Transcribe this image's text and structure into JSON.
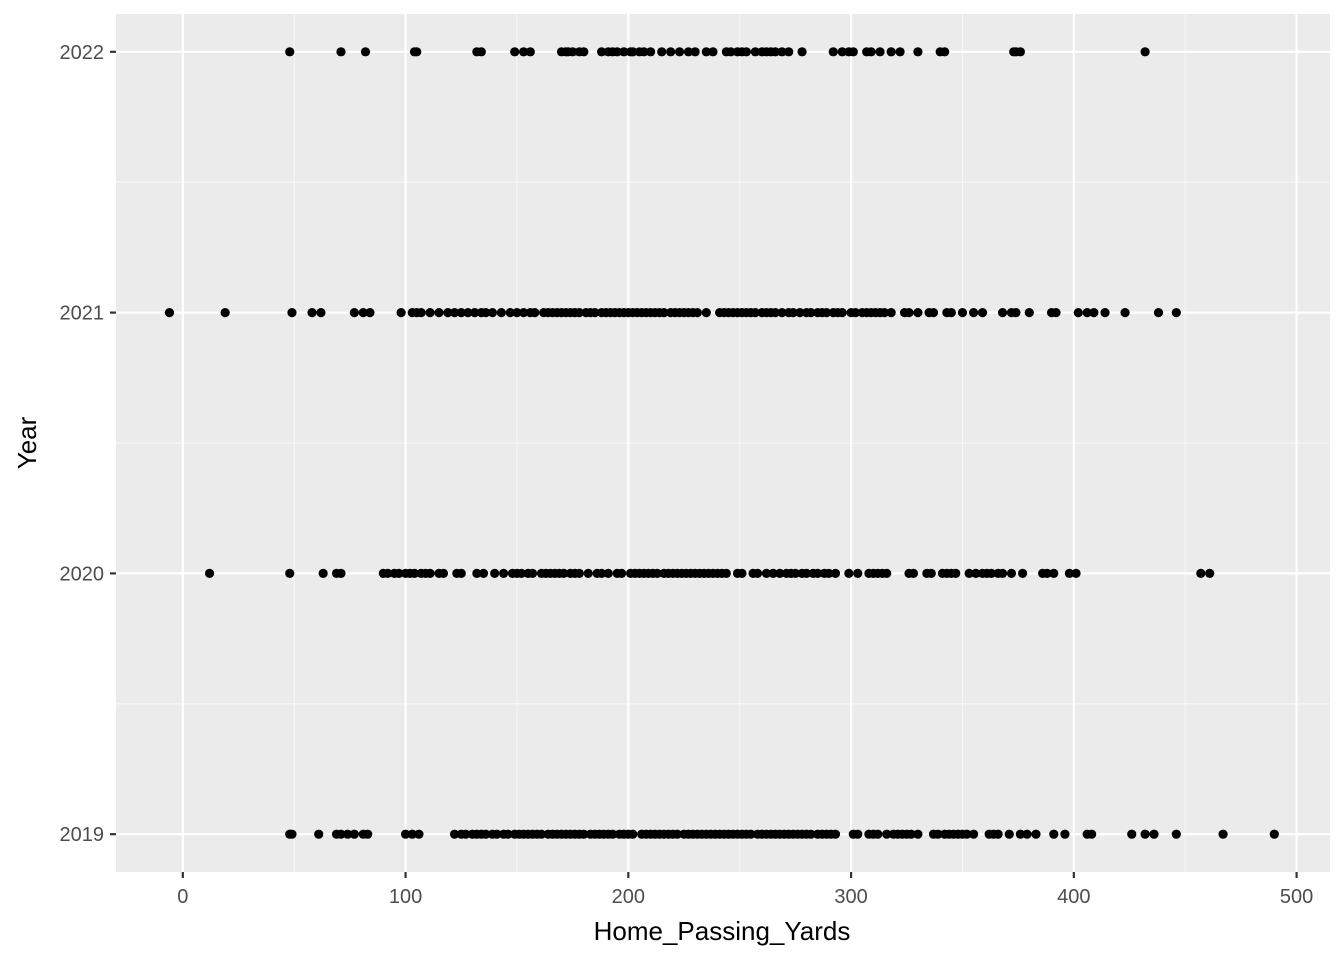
{
  "chart_data": {
    "type": "scatter",
    "xlabel": "Home_Passing_Yards",
    "ylabel": "Year",
    "xlim": [
      -30,
      515
    ],
    "xticks": [
      0,
      100,
      200,
      300,
      400,
      500
    ],
    "ylim": [
      2018.855,
      2022.145
    ],
    "yticks": [
      2019,
      2020,
      2021,
      2022
    ],
    "grid": true,
    "legend": "none",
    "colors": {
      "panel": "#ebebeb",
      "grid_major": "#ffffff",
      "grid_minor": "#f7f7f7",
      "point": "#000000",
      "tick_text": "#4d4d4d",
      "title_text": "#000000"
    },
    "series": [
      {
        "year": 2022,
        "x": [
          48,
          71,
          82,
          104,
          105,
          132,
          134,
          149,
          153,
          156,
          170,
          172,
          173,
          175,
          178,
          180,
          188,
          191,
          193,
          195,
          198,
          201,
          202,
          205,
          207,
          210,
          215,
          219,
          223,
          227,
          230,
          235,
          238,
          244,
          246,
          249,
          251,
          253,
          257,
          260,
          262,
          264,
          266,
          269,
          272,
          278,
          292,
          296,
          299,
          301,
          307,
          309,
          313,
          318,
          322,
          330,
          340,
          342,
          373,
          374,
          376,
          432
        ]
      },
      {
        "year": 2021,
        "x": [
          -6,
          19,
          49,
          58,
          62,
          77,
          81,
          84,
          98,
          103,
          105,
          107,
          111,
          115,
          119,
          122,
          125,
          128,
          131,
          134,
          136,
          139,
          143,
          147,
          150,
          153,
          156,
          158,
          162,
          164,
          166,
          168,
          170,
          172,
          174,
          176,
          178,
          181,
          183,
          185,
          188,
          190,
          192,
          194,
          196,
          198,
          200,
          202,
          204,
          206,
          208,
          210,
          212,
          214,
          216,
          219,
          221,
          223,
          225,
          227,
          229,
          231,
          235,
          241,
          243,
          245,
          247,
          249,
          251,
          253,
          255,
          257,
          260,
          262,
          264,
          266,
          269,
          272,
          274,
          277,
          280,
          282,
          285,
          287,
          289,
          292,
          294,
          296,
          300,
          302,
          305,
          307,
          309,
          311,
          313,
          315,
          318,
          324,
          326,
          330,
          335,
          337,
          343,
          345,
          350,
          355,
          359,
          368,
          372,
          374,
          380,
          390,
          392,
          402,
          406,
          409,
          414,
          423,
          438,
          446
        ]
      },
      {
        "year": 2020,
        "x": [
          12,
          48,
          63,
          69,
          71,
          90,
          92,
          95,
          97,
          100,
          102,
          104,
          107,
          109,
          111,
          115,
          117,
          123,
          125,
          132,
          135,
          140,
          144,
          148,
          150,
          152,
          155,
          157,
          161,
          163,
          165,
          167,
          169,
          171,
          174,
          176,
          178,
          182,
          186,
          188,
          191,
          195,
          197,
          201,
          203,
          205,
          207,
          209,
          211,
          213,
          216,
          218,
          220,
          222,
          224,
          226,
          228,
          230,
          232,
          234,
          236,
          238,
          240,
          242,
          244,
          249,
          251,
          256,
          258,
          262,
          265,
          268,
          271,
          273,
          275,
          278,
          280,
          283,
          285,
          288,
          290,
          293,
          299,
          303,
          308,
          310,
          312,
          314,
          316,
          326,
          328,
          334,
          336,
          341,
          343,
          345,
          347,
          353,
          356,
          359,
          361,
          363,
          366,
          368,
          372,
          377,
          386,
          388,
          391,
          398,
          401,
          457,
          461
        ]
      },
      {
        "year": 2019,
        "x": [
          48,
          49,
          61,
          69,
          71,
          74,
          77,
          81,
          83,
          100,
          103,
          106,
          122,
          125,
          127,
          130,
          132,
          134,
          136,
          139,
          141,
          144,
          146,
          149,
          151,
          153,
          155,
          157,
          159,
          161,
          164,
          166,
          168,
          170,
          172,
          174,
          176,
          178,
          180,
          183,
          185,
          187,
          189,
          191,
          193,
          196,
          198,
          200,
          202,
          206,
          208,
          210,
          212,
          214,
          216,
          218,
          220,
          222,
          225,
          227,
          229,
          231,
          233,
          235,
          237,
          239,
          241,
          243,
          245,
          247,
          249,
          251,
          253,
          255,
          258,
          260,
          262,
          264,
          266,
          268,
          270,
          272,
          274,
          276,
          278,
          280,
          282,
          285,
          287,
          289,
          291,
          293,
          301,
          303,
          308,
          310,
          312,
          316,
          319,
          321,
          323,
          325,
          327,
          330,
          337,
          339,
          342,
          344,
          346,
          348,
          350,
          352,
          355,
          362,
          364,
          366,
          371,
          376,
          379,
          383,
          391,
          396,
          406,
          408,
          426,
          432,
          436,
          446,
          467,
          490
        ]
      }
    ]
  }
}
